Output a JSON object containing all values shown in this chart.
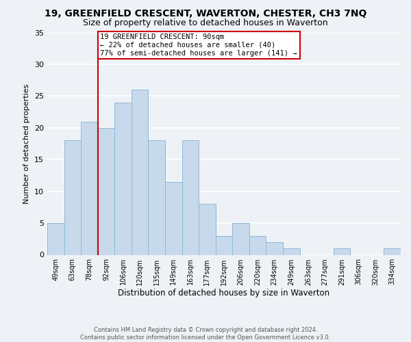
{
  "title": "19, GREENFIELD CRESCENT, WAVERTON, CHESTER, CH3 7NQ",
  "subtitle": "Size of property relative to detached houses in Waverton",
  "xlabel": "Distribution of detached houses by size in Waverton",
  "ylabel": "Number of detached properties",
  "bar_labels": [
    "49sqm",
    "63sqm",
    "78sqm",
    "92sqm",
    "106sqm",
    "120sqm",
    "135sqm",
    "149sqm",
    "163sqm",
    "177sqm",
    "192sqm",
    "206sqm",
    "220sqm",
    "234sqm",
    "249sqm",
    "263sqm",
    "277sqm",
    "291sqm",
    "306sqm",
    "320sqm",
    "334sqm"
  ],
  "bar_heights": [
    5,
    18,
    21,
    20,
    24,
    26,
    18,
    11.5,
    18,
    8,
    3,
    5,
    3,
    2,
    1,
    0,
    0,
    1,
    0,
    0,
    1
  ],
  "bar_color": "#c8d9ec",
  "bar_edge_color": "#8db8d8",
  "bar_edge_width": 0.7,
  "vline_x_idx": 3,
  "vline_color": "#cc0000",
  "ylim": [
    0,
    35
  ],
  "yticks": [
    0,
    5,
    10,
    15,
    20,
    25,
    30,
    35
  ],
  "annotation_text": "19 GREENFIELD CRESCENT: 90sqm\n← 22% of detached houses are smaller (40)\n77% of semi-detached houses are larger (141) →",
  "annotation_box_color": "#ffffff",
  "annotation_box_edge": "#cc0000",
  "footnote": "Contains HM Land Registry data © Crown copyright and database right 2024.\nContains public sector information licensed under the Open Government Licence v3.0.",
  "background_color": "#eef2f7",
  "grid_color": "#ffffff",
  "title_fontsize": 10,
  "subtitle_fontsize": 9,
  "xlabel_fontsize": 8.5,
  "ylabel_fontsize": 8,
  "xtick_fontsize": 7,
  "ytick_fontsize": 8,
  "annot_fontsize": 7.5,
  "footnote_fontsize": 6
}
